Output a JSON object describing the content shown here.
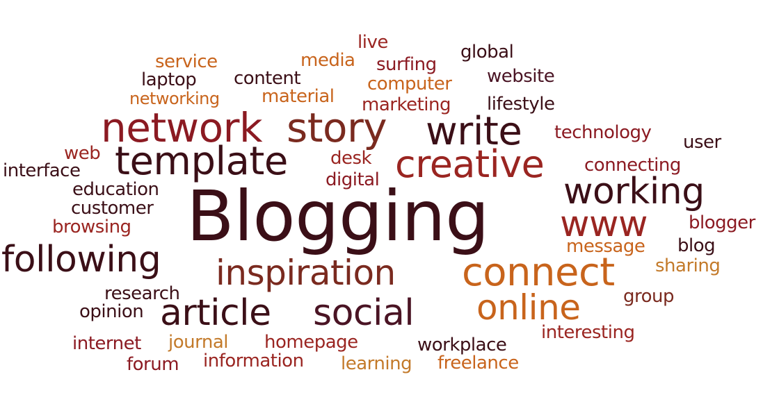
{
  "words": {
    "blogging": "Blogging",
    "network": "network",
    "story": "story",
    "write": "write",
    "template": "template",
    "creative": "creative",
    "working": "working",
    "www": "www",
    "following": "following",
    "inspiration": "inspiration",
    "connect": "connect",
    "online": "online",
    "article": "article",
    "social": "social",
    "live": "live",
    "service": "service",
    "media": "media",
    "global": "global",
    "surfing": "surfing",
    "laptop": "laptop",
    "content": "content",
    "website": "website",
    "computer": "computer",
    "networking": "networking",
    "material": "material",
    "marketing": "marketing",
    "lifestyle": "lifestyle",
    "technology": "technology",
    "user": "user",
    "web": "web",
    "desk": "desk",
    "interface": "interface",
    "connecting": "connecting",
    "digital": "digital",
    "education": "education",
    "customer": "customer",
    "browsing": "browsing",
    "blogger": "blogger",
    "message": "message",
    "blog": "blog",
    "sharing": "sharing",
    "research": "research",
    "group": "group",
    "opinion": "opinion",
    "interesting": "interesting",
    "internet": "internet",
    "journal": "journal",
    "homepage": "homepage",
    "workplace": "workplace",
    "forum": "forum",
    "information": "information",
    "learning": "learning",
    "freelance": "freelance"
  }
}
